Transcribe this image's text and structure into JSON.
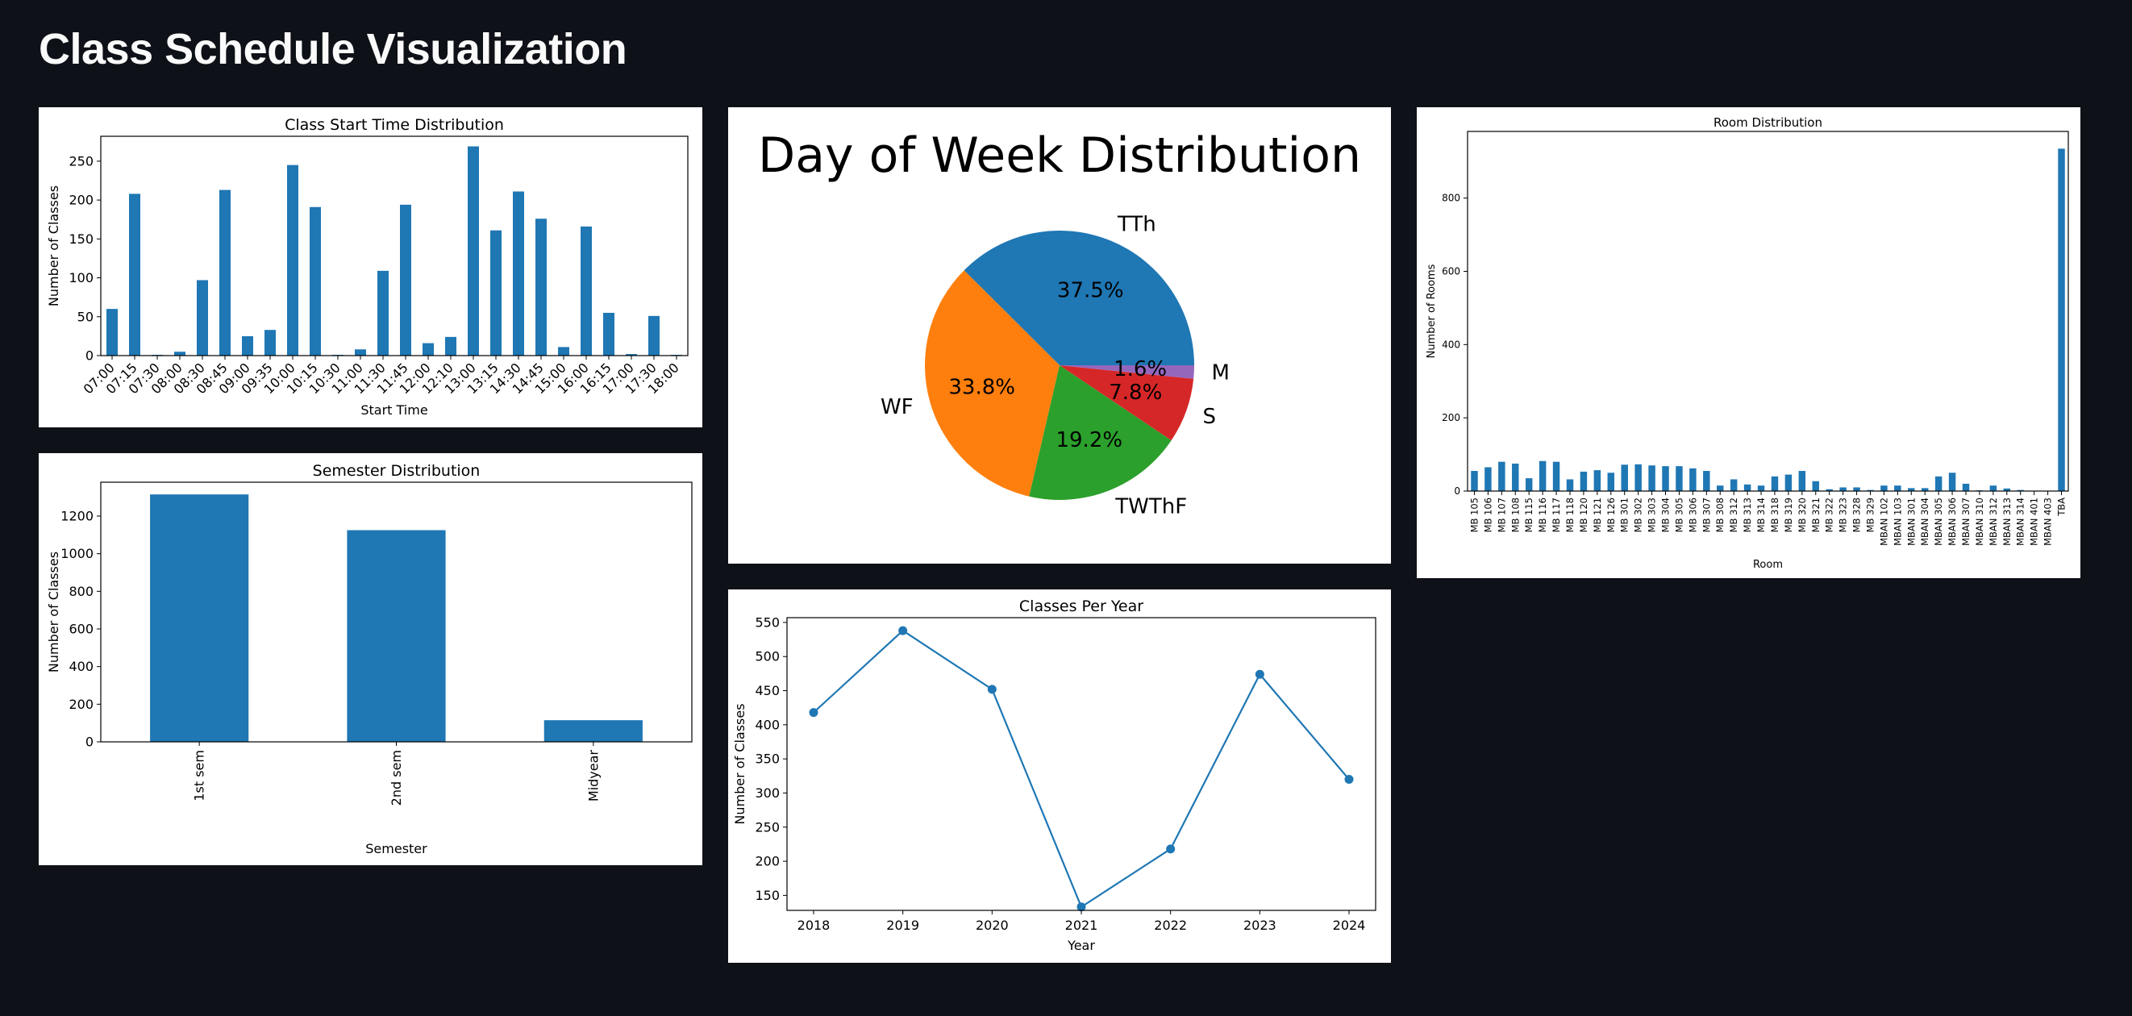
{
  "page": {
    "title": "Class Schedule Visualization"
  },
  "colors": {
    "bar": "#1f77b4",
    "background": "#0e1117"
  },
  "chart_data": [
    {
      "id": "start",
      "type": "bar",
      "title": "Class Start Time Distribution",
      "xlabel": "Start Time",
      "ylabel": "Number of Classes",
      "ylim": [
        0,
        282
      ],
      "yticks": [
        0,
        50,
        100,
        150,
        200,
        250
      ],
      "categories": [
        "07:00",
        "07:15",
        "07:30",
        "08:00",
        "08:30",
        "08:45",
        "09:00",
        "09:35",
        "10:00",
        "10:15",
        "10:30",
        "11:00",
        "11:30",
        "11:45",
        "12:00",
        "12:10",
        "13:00",
        "13:15",
        "14:30",
        "14:45",
        "15:00",
        "16:00",
        "16:15",
        "17:00",
        "17:30",
        "18:00"
      ],
      "values": [
        60,
        208,
        1,
        5,
        97,
        213,
        25,
        33,
        245,
        191,
        1,
        8,
        109,
        194,
        16,
        24,
        269,
        161,
        211,
        176,
        11,
        166,
        55,
        2,
        51,
        1
      ]
    },
    {
      "id": "sem",
      "type": "bar",
      "title": "Semester Distribution",
      "xlabel": "Semester",
      "ylabel": "Number of Classes",
      "ylim": [
        0,
        1380
      ],
      "yticks": [
        0,
        200,
        400,
        600,
        800,
        1000,
        1200
      ],
      "categories": [
        "1st sem",
        "2nd sem",
        "Midyear"
      ],
      "values": [
        1315,
        1125,
        115
      ]
    },
    {
      "id": "dow",
      "type": "pie",
      "title": "Day of Week Distribution",
      "slices": [
        {
          "label": "TTh",
          "pct": "37.5%",
          "value": 37.5,
          "color": "#1f77b4"
        },
        {
          "label": "WF",
          "pct": "33.8%",
          "value": 33.8,
          "color": "#ff7f0e"
        },
        {
          "label": "TWThF",
          "pct": "19.2%",
          "value": 19.2,
          "color": "#2ca02c"
        },
        {
          "label": "S",
          "pct": "7.8%",
          "value": 7.8,
          "color": "#d62728"
        },
        {
          "label": "M",
          "pct": "1.6%",
          "value": 1.6,
          "color": "#9467bd"
        }
      ]
    },
    {
      "id": "year",
      "type": "line",
      "title": "Classes Per Year",
      "xlabel": "Year",
      "ylabel": "Number of Classes",
      "ylim": [
        128,
        557
      ],
      "yticks": [
        150,
        200,
        250,
        300,
        350,
        400,
        450,
        500,
        550
      ],
      "x": [
        "2018",
        "2019",
        "2020",
        "2021",
        "2022",
        "2023",
        "2024"
      ],
      "values": [
        418,
        538,
        452,
        133,
        218,
        474,
        320
      ]
    },
    {
      "id": "room",
      "type": "bar",
      "title": "Room Distribution",
      "xlabel": "Room",
      "ylabel": "Number of Rooms",
      "ylim": [
        0,
        982
      ],
      "yticks": [
        0,
        200,
        400,
        600,
        800
      ],
      "categories": [
        "MB 105",
        "MB 106",
        "MB 107",
        "MB 108",
        "MB 115",
        "MB 116",
        "MB 117",
        "MB 118",
        "MB 120",
        "MB 121",
        "MB 126",
        "MB 301",
        "MB 302",
        "MB 303",
        "MB 304",
        "MB 305",
        "MB 306",
        "MB 307",
        "MB 308",
        "MB 312",
        "MB 313",
        "MB 314",
        "MB 318",
        "MB 319",
        "MB 320",
        "MB 321",
        "MB 322",
        "MB 323",
        "MB 328",
        "MB 329",
        "MBAN 102",
        "MBAN 103",
        "MBAN 301",
        "MBAN 304",
        "MBAN 305",
        "MBAN 306",
        "MBAN 307",
        "MBAN 310",
        "MBAN 312",
        "MBAN 313",
        "MBAN 314",
        "MBAN 401",
        "MBAN 403",
        "TBA"
      ],
      "values": [
        55,
        65,
        80,
        75,
        35,
        82,
        80,
        32,
        53,
        57,
        50,
        72,
        73,
        70,
        68,
        68,
        62,
        55,
        15,
        32,
        18,
        15,
        40,
        45,
        55,
        27,
        5,
        10,
        10,
        3,
        15,
        15,
        8,
        8,
        40,
        50,
        20,
        2,
        15,
        7,
        3,
        1,
        1,
        935
      ]
    }
  ]
}
